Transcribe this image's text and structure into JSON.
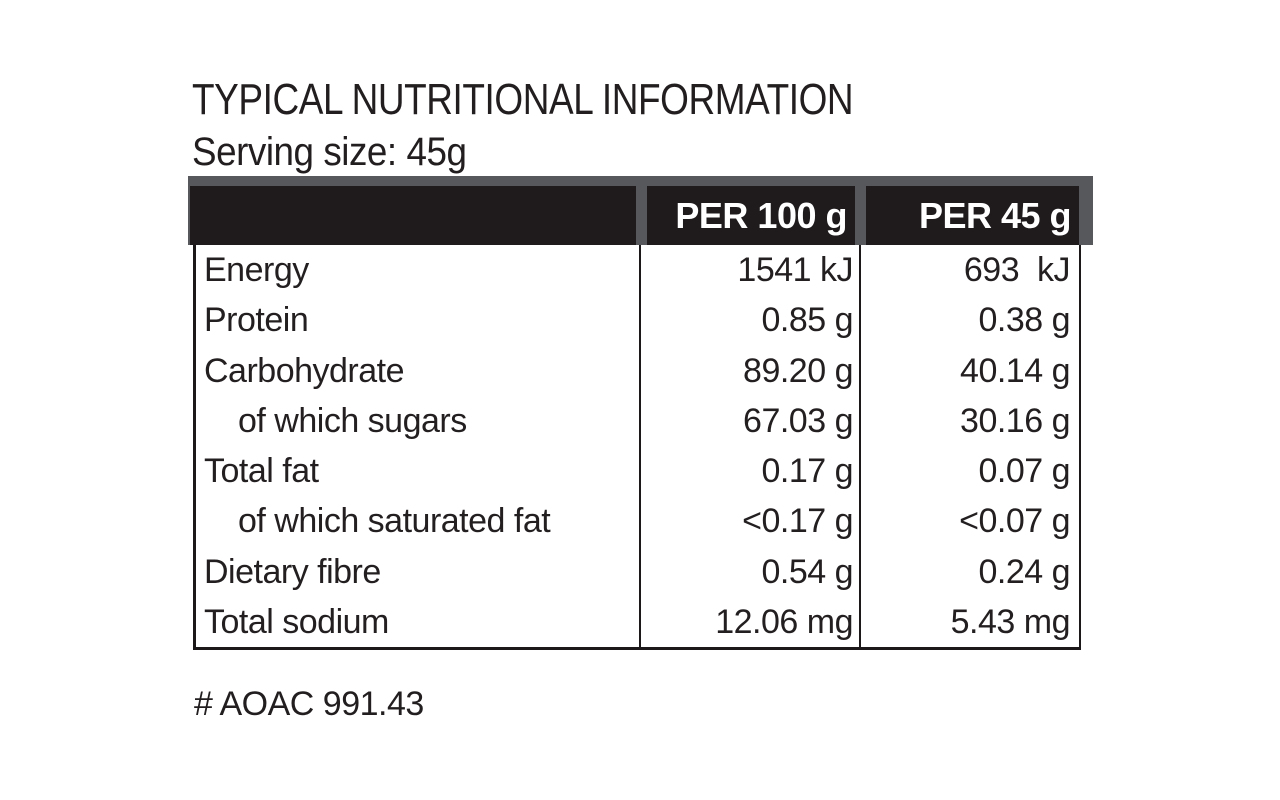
{
  "title": "TYPICAL NUTRITIONAL INFORMATION",
  "serving_size": "Serving size: 45g",
  "footnote": "# AOAC 991.43",
  "colors": {
    "header_background": "#1f1b1c",
    "header_strip_gray": "#57585c",
    "header_text": "#ffffff",
    "body_text": "#231f20",
    "border": "#1c1819",
    "page_background": "#ffffff"
  },
  "table": {
    "columns": [
      "",
      "PER 100 g",
      "PER 45 g"
    ],
    "rows": [
      {
        "label": "Energy",
        "per100": "1541 kJ",
        "per45": "693  kJ"
      },
      {
        "label": "Protein",
        "per100": "0.85 g",
        "per45": "0.38 g"
      },
      {
        "label": "Carbohydrate",
        "per100": "89.20 g",
        "per45": "40.14 g"
      },
      {
        "label": "of which sugars",
        "per100": "67.03 g",
        "per45": "30.16 g"
      },
      {
        "label": "Total fat",
        "per100": "0.17 g",
        "per45": "0.07 g"
      },
      {
        "label": "of which saturated fat",
        "per100": "<0.17 g",
        "per45": "<0.07 g"
      },
      {
        "label": "Dietary fibre",
        "per100": "0.54 g",
        "per45": "0.24 g"
      },
      {
        "label": "Total sodium",
        "per100": "12.06 mg",
        "per45": "5.43 mg"
      }
    ]
  }
}
